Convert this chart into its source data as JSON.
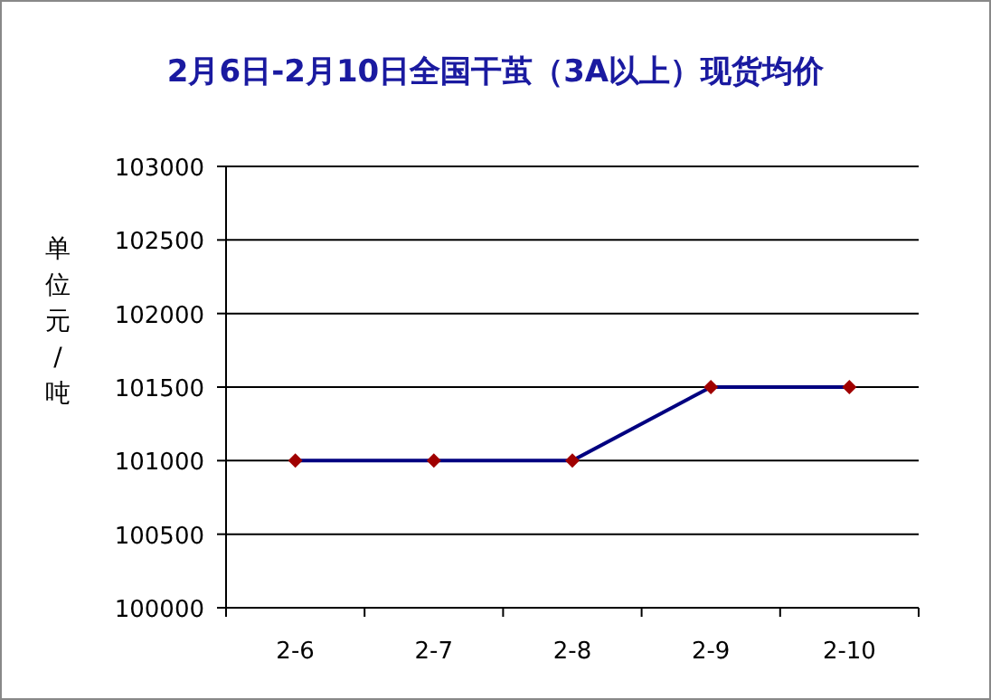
{
  "chart_data": {
    "type": "line",
    "title": "2月6日-2月10日全国干茧（3A以上）现货均价",
    "ylabel": "单位元/吨",
    "categories": [
      "2-6",
      "2-7",
      "2-8",
      "2-9",
      "2-10"
    ],
    "series": [
      {
        "color": "#000080",
        "values": [
          101000,
          101000,
          101000,
          101500,
          101500
        ]
      }
    ],
    "marker": "diamond",
    "ylim": [
      100000,
      103000
    ],
    "yticks": [
      100000,
      100500,
      101000,
      101500,
      102000,
      102500,
      103000
    ],
    "grid": "y"
  }
}
